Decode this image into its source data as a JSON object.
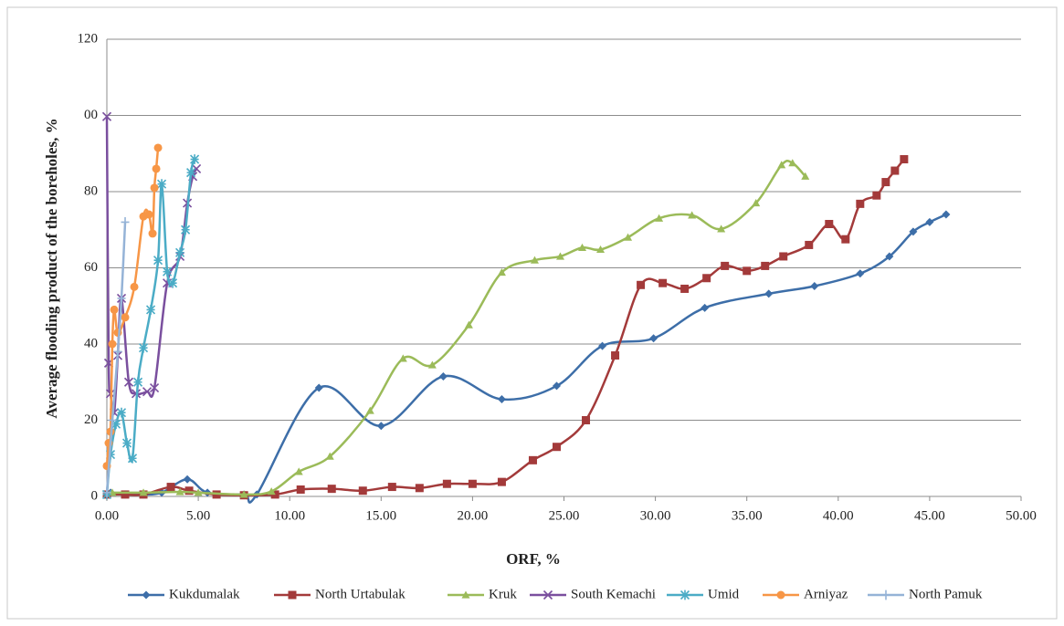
{
  "chart_data": {
    "type": "line",
    "xlabel": "ORF, %",
    "ylabel": "Average flooding product of the boreholes, %",
    "xlim": [
      0,
      50
    ],
    "ylim": [
      0,
      120
    ],
    "xticks": [
      {
        "value": 0,
        "label": "0.00"
      },
      {
        "value": 5,
        "label": "5.00"
      },
      {
        "value": 10,
        "label": "10.00"
      },
      {
        "value": 15,
        "label": "15.00"
      },
      {
        "value": 20,
        "label": "20.00"
      },
      {
        "value": 25,
        "label": "25.00"
      },
      {
        "value": 30,
        "label": "30.00"
      },
      {
        "value": 35,
        "label": "35.00"
      },
      {
        "value": 40,
        "label": "40.00"
      },
      {
        "value": 45,
        "label": "45.00"
      },
      {
        "value": 50,
        "label": "50.00"
      }
    ],
    "yticks": [
      0,
      20,
      40,
      60,
      80,
      {
        "value": 100,
        "label": "00"
      },
      120
    ],
    "grid": true,
    "legend": "bottom",
    "series": [
      {
        "name": "Kukdumalak",
        "color": "#3d6ea8",
        "marker": "diamond",
        "x": [
          0.2,
          1.0,
          2,
          3,
          4.4,
          5.5,
          7.5,
          8.2,
          11.6,
          15,
          18.4,
          21.6,
          24.6,
          27.1,
          29.9,
          32.7,
          36.2,
          38.7,
          41.2,
          42.8,
          44.1,
          45,
          45.9
        ],
        "values": [
          1,
          0.5,
          0.5,
          1,
          4.5,
          1,
          0.5,
          0.5,
          28.5,
          18.5,
          31.5,
          25.5,
          29,
          39.5,
          41.5,
          49.5,
          53.2,
          55.2,
          58.5,
          63,
          69.5,
          72,
          74
        ]
      },
      {
        "name": "North Urtabulak",
        "color": "#a33a3a",
        "marker": "square",
        "x": [
          0,
          1.0,
          2,
          3.5,
          4.5,
          6,
          7.5,
          9.2,
          10.6,
          12.3,
          14,
          15.6,
          17.1,
          18.6,
          20,
          21.6,
          23.3,
          24.6,
          26.2,
          27.8,
          29.2,
          30.4,
          31.6,
          32.8,
          33.8,
          35,
          36,
          37,
          38.4,
          39.5,
          40.4,
          41.2,
          42.1,
          42.6,
          43.1,
          43.6
        ],
        "values": [
          0.5,
          0.5,
          0.5,
          2.5,
          1.5,
          0.5,
          0.3,
          0.5,
          1.8,
          2,
          1.5,
          2.5,
          2.2,
          3.3,
          3.3,
          3.8,
          9.5,
          13,
          20,
          37,
          55.5,
          56,
          54.5,
          57.3,
          60.5,
          59.2,
          60.5,
          63,
          66,
          71.5,
          67.5,
          76.8,
          79,
          82.5,
          85.5,
          88.5
        ]
      },
      {
        "name": "Kruk",
        "color": "#9bbb59",
        "marker": "triangle",
        "x": [
          0.3,
          2,
          4,
          5,
          7.5,
          9,
          10.5,
          12.2,
          14.4,
          16.2,
          17.8,
          19.8,
          21.6,
          23.4,
          24.8,
          26,
          27,
          28.5,
          30.2,
          32,
          33.6,
          35.5,
          36.9,
          37.5,
          38.2
        ],
        "values": [
          1,
          1,
          1.2,
          1,
          0.5,
          1.3,
          6.5,
          10.5,
          22.5,
          36.2,
          34.5,
          45,
          58.8,
          62,
          63,
          65.3,
          64.8,
          68,
          73,
          73.8,
          70.2,
          77,
          87,
          87.5,
          84
        ]
      },
      {
        "name": "South Kemachi",
        "color": "#7a4f9e",
        "marker": "x",
        "x": [
          0,
          0.1,
          0.2,
          0.4,
          0.6,
          0.8,
          1.2,
          1.6,
          2.2,
          2.6,
          3.3,
          4,
          4.4,
          4.7,
          4.9
        ],
        "values": [
          99.7,
          35,
          27,
          22,
          37,
          52,
          30,
          27,
          27.5,
          28.5,
          56,
          63,
          77,
          84,
          86
        ]
      },
      {
        "name": "Umid",
        "color": "#4bacc6",
        "marker": "star",
        "x": [
          0,
          0.2,
          0.5,
          0.8,
          1.1,
          1.4,
          1.7,
          2.0,
          2.4,
          2.8,
          3.0,
          3.3,
          3.6,
          4.0,
          4.3,
          4.6,
          4.8
        ],
        "values": [
          0.5,
          11,
          19,
          22,
          14,
          10,
          30,
          39,
          49,
          62,
          82,
          59,
          56,
          64,
          70,
          85,
          88.5
        ]
      },
      {
        "name": "Arniyaz",
        "color": "#f79646",
        "marker": "circle",
        "x": [
          0,
          0.1,
          0.2,
          0.3,
          0.4,
          0.6,
          1.0,
          1.5,
          2.0,
          2.3,
          2.5,
          2.6,
          2.7,
          2.8
        ],
        "values": [
          8,
          14,
          17,
          40,
          49,
          43,
          47,
          55,
          73.5,
          74,
          69,
          81,
          86,
          91.5
        ]
      },
      {
        "name": "North Pamuk",
        "color": "#95b3d7",
        "marker": "plus",
        "x": [
          0,
          0.3,
          0.6,
          0.8,
          1.0
        ],
        "values": [
          1,
          20,
          38,
          52,
          72
        ]
      }
    ]
  }
}
